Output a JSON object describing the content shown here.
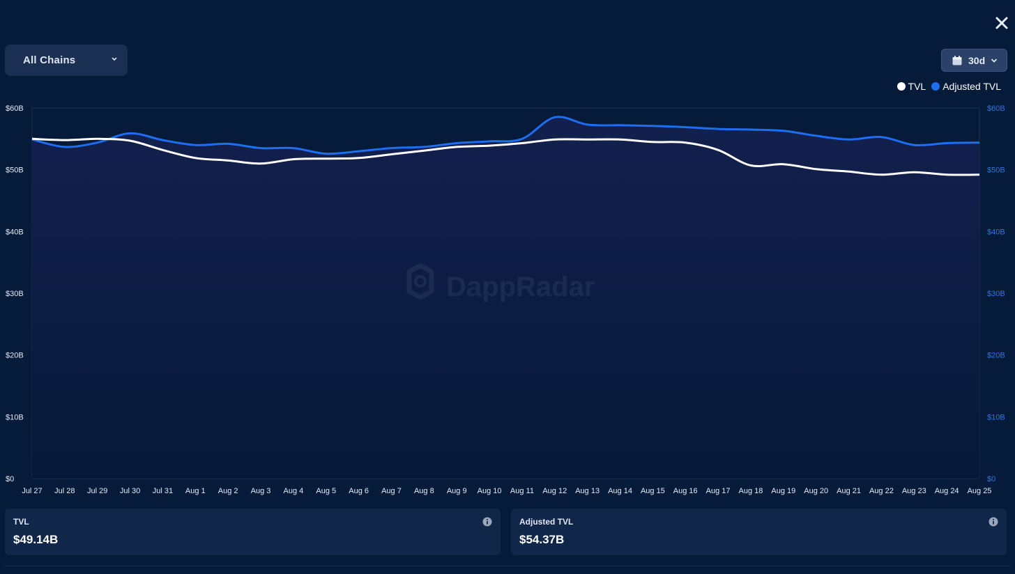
{
  "controls": {
    "chain_select_label": "All Chains",
    "range_select_label": "30d"
  },
  "legend": {
    "tvl_label": "TVL",
    "adjusted_label": "Adjusted TVL"
  },
  "watermark": {
    "text": "DappRadar"
  },
  "stats": {
    "tvl": {
      "label": "TVL",
      "value": "$49.14B"
    },
    "adjusted": {
      "label": "Adjusted TVL",
      "value": "$54.37B"
    }
  },
  "colors": {
    "background": "#061a3a",
    "tvl_line": "#ffffff",
    "adjusted_line": "#1e6ef0",
    "left_axis_text": "#e6ecf7",
    "right_axis_text": "#2f74e8",
    "gridline": "#1e3158"
  },
  "icons": {
    "close": "close-icon",
    "chain_chevron": "chevron-down-icon",
    "calendar": "calendar-icon",
    "info": "info-icon"
  },
  "chart_data": {
    "type": "line",
    "categories": [
      "Jul 27",
      "Jul 28",
      "Jul 29",
      "Jul 30",
      "Jul 31",
      "Aug 1",
      "Aug 2",
      "Aug 3",
      "Aug 4",
      "Aug 5",
      "Aug 6",
      "Aug 7",
      "Aug 8",
      "Aug 9",
      "Aug 10",
      "Aug 11",
      "Aug 12",
      "Aug 13",
      "Aug 14",
      "Aug 15",
      "Aug 16",
      "Aug 17",
      "Aug 18",
      "Aug 19",
      "Aug 20",
      "Aug 21",
      "Aug 22",
      "Aug 23",
      "Aug 24",
      "Aug 25"
    ],
    "series": [
      {
        "name": "TVL",
        "axis": "left",
        "color": "#ffffff",
        "values": [
          55.0,
          54.8,
          55.0,
          54.7,
          53.2,
          51.9,
          51.5,
          51.0,
          51.7,
          51.8,
          51.9,
          52.5,
          53.1,
          53.7,
          53.9,
          54.3,
          54.9,
          54.9,
          54.9,
          54.5,
          54.4,
          53.2,
          50.7,
          50.9,
          50.1,
          49.7,
          49.2,
          49.6,
          49.2,
          49.2
        ]
      },
      {
        "name": "Adjusted TVL",
        "axis": "right",
        "color": "#1e6ef0",
        "values": [
          54.9,
          53.7,
          54.4,
          55.9,
          54.8,
          54.0,
          54.2,
          53.5,
          53.5,
          52.6,
          53.0,
          53.5,
          53.7,
          54.3,
          54.6,
          55.0,
          58.5,
          57.3,
          57.2,
          57.1,
          56.9,
          56.6,
          56.5,
          56.3,
          55.5,
          54.9,
          55.3,
          54.0,
          54.3,
          54.4
        ]
      }
    ],
    "y_ticks_left": [
      "$0",
      "$10B",
      "$20B",
      "$30B",
      "$40B",
      "$50B",
      "$60B"
    ],
    "y_ticks_right": [
      "$0",
      "$10B",
      "$20B",
      "$30B",
      "$40B",
      "$50B",
      "$60B"
    ],
    "ylim": [
      0,
      60
    ],
    "grid": true,
    "legend_position": "top-right"
  }
}
